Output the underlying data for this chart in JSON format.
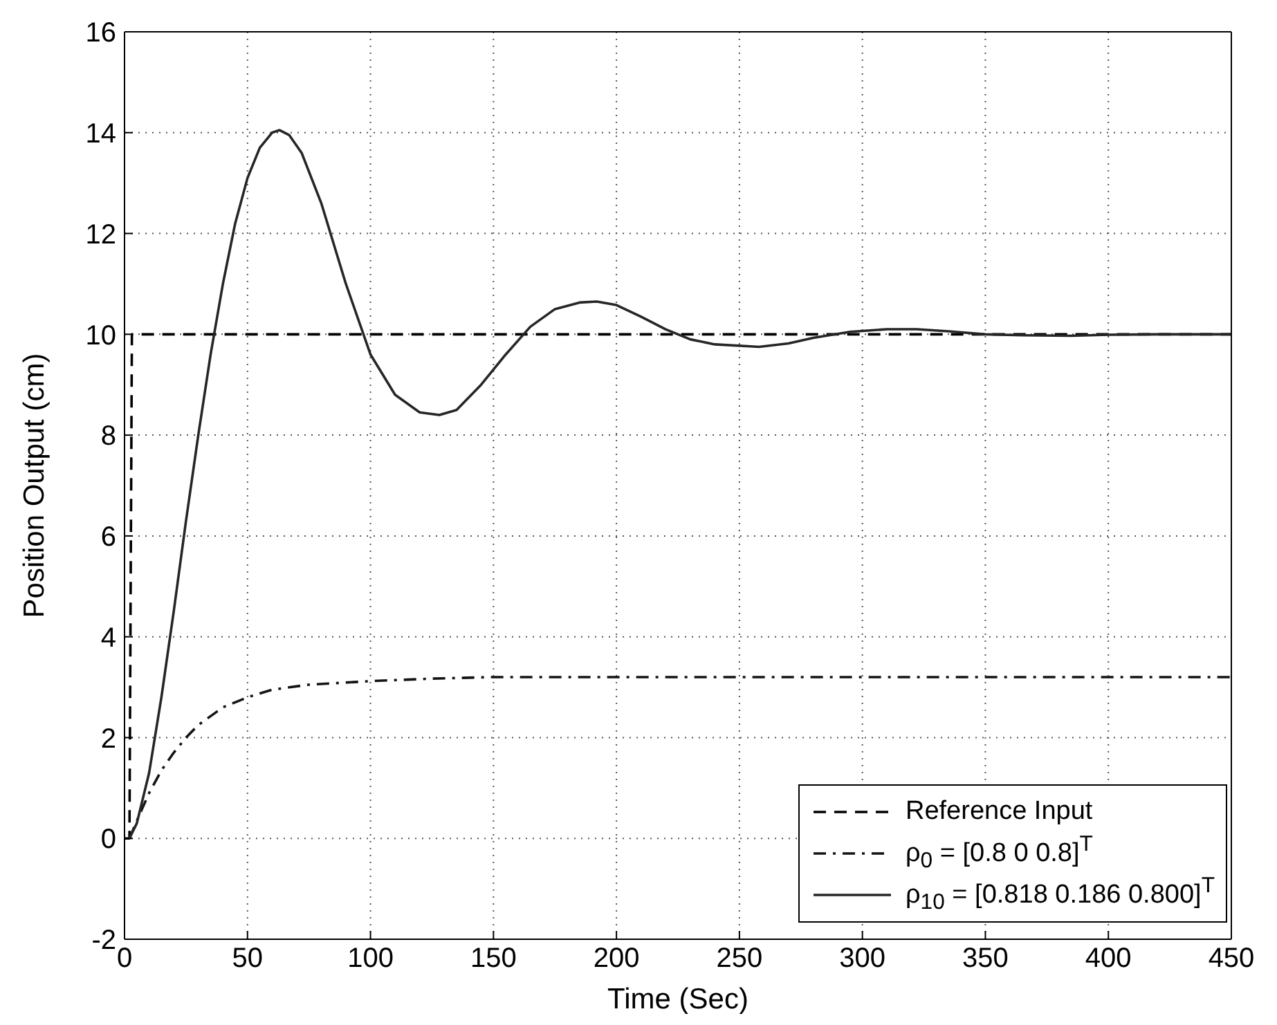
{
  "chart_data": {
    "type": "line",
    "xlabel": "Time (Sec)",
    "ylabel": "Position Output (cm)",
    "xlim": [
      0,
      450
    ],
    "xticks": [
      0,
      50,
      100,
      150,
      200,
      250,
      300,
      350,
      400,
      450
    ],
    "ylim": [
      -2,
      16
    ],
    "yticks": [
      -2,
      0,
      2,
      4,
      6,
      8,
      10,
      12,
      14,
      16
    ],
    "grid": true,
    "legend": "bottom right",
    "marker": "none",
    "series": [
      {
        "name": "Reference Input",
        "color": "#000000",
        "line_style": "dashed",
        "x": [
          0,
          2,
          3,
          450
        ],
        "values": [
          0,
          0,
          10,
          10
        ]
      },
      {
        "name": "ρ$_{0}$ = [0.8 0 0.8]$^{T}$",
        "color": "#141414",
        "line_style": "dashdot",
        "x": [
          2,
          5,
          10,
          15,
          20,
          25,
          30,
          40,
          50,
          60,
          75,
          100,
          125,
          150,
          200,
          300,
          450
        ],
        "values": [
          0,
          0.35,
          0.9,
          1.35,
          1.7,
          2.0,
          2.25,
          2.6,
          2.8,
          2.95,
          3.05,
          3.12,
          3.17,
          3.2,
          3.2,
          3.2,
          3.2
        ]
      },
      {
        "name": "ρ$_{10}$ = [0.818 0.186 0.800]$^{T}$",
        "color": "#262626",
        "line_style": "solid",
        "x": [
          2,
          5,
          10,
          15,
          20,
          25,
          30,
          35,
          40,
          45,
          50,
          55,
          60,
          63,
          67,
          72,
          80,
          90,
          100,
          110,
          120,
          128,
          135,
          145,
          155,
          165,
          175,
          185,
          192,
          200,
          210,
          220,
          230,
          240,
          258,
          270,
          280,
          295,
          310,
          322,
          335,
          350,
          365,
          385,
          400,
          420,
          450
        ],
        "values": [
          0,
          0.3,
          1.3,
          2.8,
          4.5,
          6.3,
          8.0,
          9.6,
          11.0,
          12.2,
          13.1,
          13.7,
          14.0,
          14.05,
          13.95,
          13.6,
          12.6,
          11.0,
          9.6,
          8.8,
          8.45,
          8.4,
          8.5,
          9.0,
          9.6,
          10.15,
          10.5,
          10.63,
          10.65,
          10.58,
          10.35,
          10.1,
          9.9,
          9.8,
          9.75,
          9.82,
          9.93,
          10.05,
          10.1,
          10.1,
          10.06,
          10.0,
          9.98,
          9.97,
          9.99,
          10.0,
          10.0
        ]
      }
    ]
  }
}
